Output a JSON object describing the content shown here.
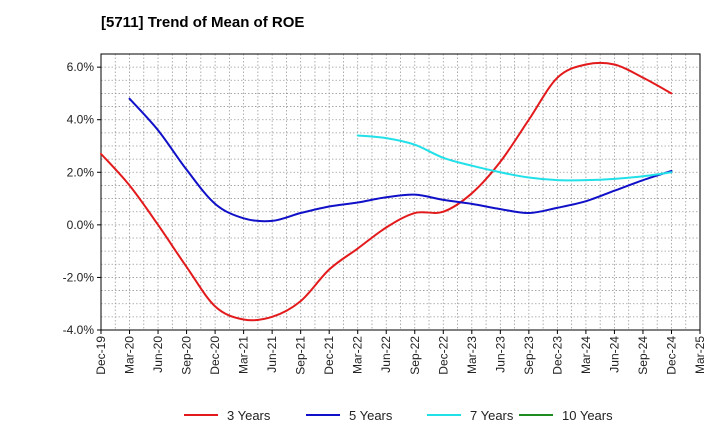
{
  "title": "[5711]  Trend of Mean of ROE",
  "chart_data": {
    "type": "line",
    "title": "[5711]  Trend of Mean of ROE",
    "xlabel": "",
    "ylabel": "",
    "ylim": [
      -4.0,
      6.5
    ],
    "grid": true,
    "legend_position": "bottom",
    "x_ticks": [
      "Dec-19",
      "Mar-20",
      "Jun-20",
      "Sep-20",
      "Dec-20",
      "Mar-21",
      "Jun-21",
      "Sep-21",
      "Dec-21",
      "Mar-22",
      "Jun-22",
      "Sep-22",
      "Dec-22",
      "Mar-23",
      "Jun-23",
      "Sep-23",
      "Dec-23",
      "Mar-24",
      "Jun-24",
      "Sep-24",
      "Dec-24",
      "Mar-25"
    ],
    "y_ticks": [
      {
        "value": 6.0,
        "label": "6.0%"
      },
      {
        "value": 4.0,
        "label": "4.0%"
      },
      {
        "value": 2.0,
        "label": "2.0%"
      },
      {
        "value": 0.0,
        "label": "0.0%"
      },
      {
        "value": -2.0,
        "label": "-2.0%"
      },
      {
        "value": -4.0,
        "label": "-4.0%"
      }
    ],
    "series": [
      {
        "name": "3 Years",
        "color": "#e31a1c",
        "points": [
          [
            "Dec-19",
            2.7
          ],
          [
            "Mar-20",
            1.5
          ],
          [
            "Jun-20",
            0.0
          ],
          [
            "Sep-20",
            -1.6
          ],
          [
            "Dec-20",
            -3.1
          ],
          [
            "Mar-21",
            -3.6
          ],
          [
            "Jun-21",
            -3.5
          ],
          [
            "Sep-21",
            -2.9
          ],
          [
            "Dec-21",
            -1.7
          ],
          [
            "Mar-22",
            -0.9
          ],
          [
            "Jun-22",
            -0.1
          ],
          [
            "Sep-22",
            0.45
          ],
          [
            "Dec-22",
            0.5
          ],
          [
            "Mar-23",
            1.2
          ],
          [
            "Jun-23",
            2.4
          ],
          [
            "Sep-23",
            4.0
          ],
          [
            "Dec-23",
            5.6
          ],
          [
            "Mar-24",
            6.1
          ],
          [
            "Jun-24",
            6.1
          ],
          [
            "Sep-24",
            5.6
          ],
          [
            "Dec-24",
            5.0
          ]
        ]
      },
      {
        "name": "5 Years",
        "color": "#1010c8",
        "points": [
          [
            "Mar-20",
            4.8
          ],
          [
            "Jun-20",
            3.6
          ],
          [
            "Sep-20",
            2.1
          ],
          [
            "Dec-20",
            0.8
          ],
          [
            "Mar-21",
            0.25
          ],
          [
            "Jun-21",
            0.15
          ],
          [
            "Sep-21",
            0.45
          ],
          [
            "Dec-21",
            0.7
          ],
          [
            "Mar-22",
            0.85
          ],
          [
            "Jun-22",
            1.05
          ],
          [
            "Sep-22",
            1.15
          ],
          [
            "Dec-22",
            0.95
          ],
          [
            "Mar-23",
            0.8
          ],
          [
            "Jun-23",
            0.6
          ],
          [
            "Sep-23",
            0.45
          ],
          [
            "Dec-23",
            0.65
          ],
          [
            "Mar-24",
            0.9
          ],
          [
            "Jun-24",
            1.3
          ],
          [
            "Sep-24",
            1.7
          ],
          [
            "Dec-24",
            2.05
          ]
        ]
      },
      {
        "name": "7 Years",
        "color": "#22e0e8",
        "points": [
          [
            "Mar-22",
            3.4
          ],
          [
            "Jun-22",
            3.3
          ],
          [
            "Sep-22",
            3.05
          ],
          [
            "Dec-22",
            2.55
          ],
          [
            "Mar-23",
            2.25
          ],
          [
            "Jun-23",
            2.0
          ],
          [
            "Sep-23",
            1.8
          ],
          [
            "Dec-23",
            1.7
          ],
          [
            "Mar-24",
            1.7
          ],
          [
            "Jun-24",
            1.75
          ],
          [
            "Sep-24",
            1.85
          ],
          [
            "Dec-24",
            2.0
          ]
        ]
      },
      {
        "name": "10 Years",
        "color": "#1e8c1e",
        "points": []
      }
    ]
  }
}
